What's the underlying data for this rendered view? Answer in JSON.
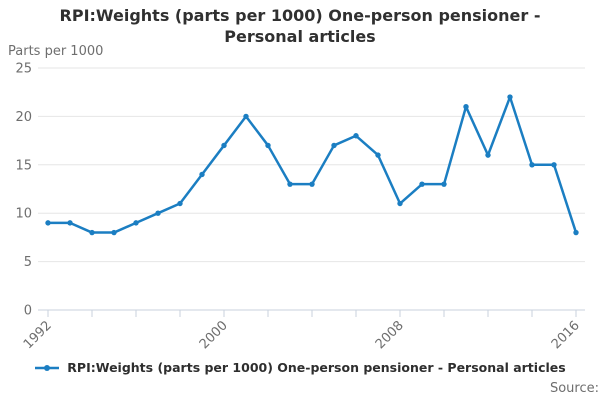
{
  "page": {
    "title": "RPI:Weights (parts per 1000) One-person pensioner - Personal articles",
    "source_label": "Source:"
  },
  "colors": {
    "accent": "#1b7ec2",
    "gridline": "#e6e6e6",
    "axis": "#c8d2de",
    "title_text": "#303030",
    "muted_text": "#6e6e6e"
  },
  "chart_data": {
    "type": "line",
    "title": "RPI:Weights (parts per 1000) One-person pensioner - Personal articles",
    "xlabel": "",
    "ylabel": "Parts per 1000",
    "x": [
      1992,
      1993,
      1994,
      1995,
      1996,
      1997,
      1998,
      1999,
      2000,
      2001,
      2002,
      2003,
      2004,
      2005,
      2006,
      2007,
      2008,
      2009,
      2010,
      2011,
      2012,
      2013,
      2014,
      2015,
      2016
    ],
    "series": [
      {
        "name": "RPI:Weights (parts per 1000) One-person pensioner - Personal articles",
        "values": [
          9,
          9,
          8,
          8,
          9,
          10,
          11,
          14,
          17,
          20,
          17,
          13,
          13,
          17,
          18,
          16,
          11,
          13,
          13,
          21,
          16,
          22,
          15,
          15,
          8
        ]
      }
    ],
    "ylim": [
      0,
      25
    ],
    "y_ticks": [
      0,
      5,
      10,
      15,
      20,
      25
    ],
    "x_tick_step": 2,
    "x_label_years": [
      1992,
      2000,
      2008,
      2016
    ],
    "grid": "horizontal-only",
    "legend_position": "bottom",
    "marker": "circle"
  }
}
